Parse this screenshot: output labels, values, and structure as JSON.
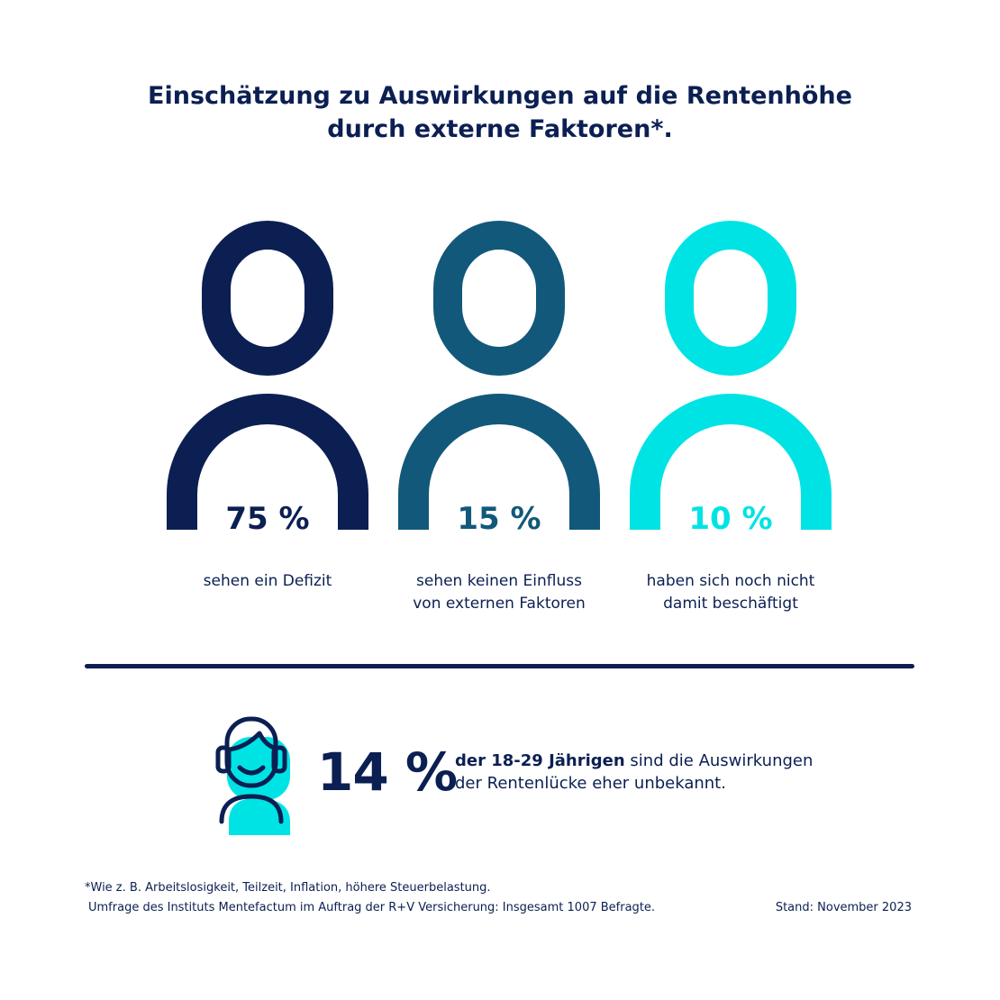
{
  "header": {
    "title_line1": "Einschätzung zu Auswirkungen auf die Rentenhöhe",
    "title_line2": "durch externe Faktoren*."
  },
  "chart_data": {
    "type": "pictogram",
    "title": "Einschätzung zu Auswirkungen auf die Rentenhöhe durch externe Faktoren*.",
    "series": [
      {
        "value": 75,
        "value_label": "75 %",
        "caption_lines": [
          "sehen ein Defizit"
        ],
        "color": "#0b1f52"
      },
      {
        "value": 15,
        "value_label": "15 %",
        "caption_lines": [
          "sehen keinen Einfluss",
          "von externen Faktoren"
        ],
        "color": "#12587a"
      },
      {
        "value": 10,
        "value_label": "10 %",
        "caption_lines": [
          "haben sich noch nicht",
          "damit beschäftigt"
        ],
        "color": "#00e3e5"
      }
    ]
  },
  "highlight": {
    "value": 14,
    "value_label": "14 %",
    "text_bold": "der 18-29 Jährigen",
    "text_rest_line1": " sind die Auswirkungen",
    "text_line2": "der Rentenlücke eher unbekannt.",
    "icon": "young-person-icon",
    "icon_color_dark": "#0b1f52",
    "icon_color_accent": "#00e3e5"
  },
  "footer": {
    "note_line1": "*Wie z. B. Arbeitslosigkeit, Teilzeit, Inflation, höhere Steuerbelastung.",
    "note_line2": "Umfrage des Instituts Mentefactum im Auftrag der R+V Versicherung: Insgesamt 1007 Befragte.",
    "stand": "Stand: November 2023"
  }
}
